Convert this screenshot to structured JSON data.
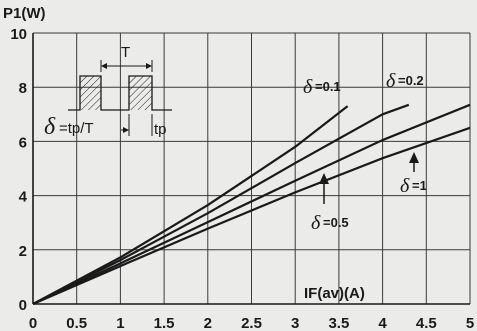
{
  "chart_data": {
    "type": "line",
    "ylabel": "P1(W)",
    "xlabel": "IF(av)(A)",
    "xlim": [
      0,
      5
    ],
    "ylim": [
      0,
      10
    ],
    "x_ticks": [
      0,
      0.5,
      1,
      1.5,
      2,
      2.5,
      3,
      3.5,
      4,
      4.5,
      5
    ],
    "x_tick_labels": [
      "0",
      "0.5",
      "1",
      "1.5",
      "2",
      "2.5",
      "3",
      "3.5",
      "4",
      "4.5",
      "5"
    ],
    "y_ticks": [
      0,
      2,
      4,
      6,
      8,
      10
    ],
    "y_tick_labels": [
      "0",
      "2",
      "4",
      "6",
      "8",
      "10"
    ],
    "grid": true,
    "series": [
      {
        "name": "δ=0.1",
        "symbol": "δ",
        "value_text": "=0.1",
        "x": [
          0,
          1,
          2,
          3,
          3.6
        ],
        "y": [
          0,
          1.72,
          3.65,
          5.8,
          7.3
        ]
      },
      {
        "name": "δ=0.2",
        "symbol": "δ",
        "value_text": "=0.2",
        "x": [
          0,
          1,
          2,
          3,
          4,
          4.3
        ],
        "y": [
          0,
          1.62,
          3.35,
          5.2,
          7.0,
          7.35
        ]
      },
      {
        "name": "δ=0.5",
        "symbol": "δ",
        "value_text": "=0.5",
        "x": [
          0,
          1,
          2,
          3,
          4,
          5
        ],
        "y": [
          0,
          1.5,
          3.02,
          4.55,
          6.05,
          7.35
        ]
      },
      {
        "name": "δ=1",
        "symbol": "δ",
        "value_text": "=1",
        "x": [
          0,
          1,
          2,
          3,
          4,
          5
        ],
        "y": [
          0,
          1.4,
          2.78,
          4.12,
          5.38,
          6.5
        ]
      }
    ],
    "inset": {
      "period_label": "T",
      "formula_symbol": "δ",
      "formula_text": "=tp/T",
      "pulse_label": "tp"
    }
  }
}
